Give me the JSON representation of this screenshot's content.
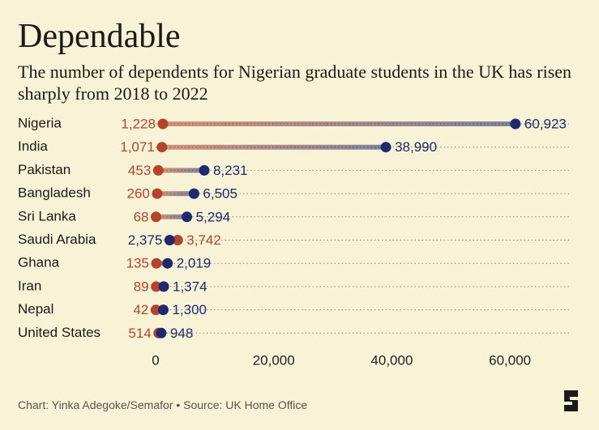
{
  "chart_data": {
    "type": "dumbbell",
    "title": "Dependable",
    "subtitle": "The number of dependents for Nigerian graduate students in the UK has risen sharply from 2018 to 2022",
    "footer": "Chart: Yinka Adegoke/Semafor • Source: UK Home Office",
    "categories": [
      "Nigeria",
      "India",
      "Pakistan",
      "Bangladesh",
      "Sri Lanka",
      "Saudi Arabia",
      "Ghana",
      "Iran",
      "Nepal",
      "United States"
    ],
    "series": [
      {
        "color": "#b3452a",
        "values": [
          1228,
          1071,
          453,
          260,
          68,
          3742,
          135,
          89,
          42,
          514
        ],
        "value_labels": [
          "1,228",
          "1,071",
          "453",
          "260",
          "68",
          "3,742",
          "135",
          "89",
          "42",
          "514"
        ]
      },
      {
        "color": "#1f2a6e",
        "values": [
          60923,
          38990,
          8231,
          6505,
          5294,
          2375,
          2019,
          1374,
          1300,
          948
        ],
        "value_labels": [
          "60,923",
          "38,990",
          "8,231",
          "6,505",
          "5,294",
          "2,375",
          "2,019",
          "1,374",
          "1,300",
          "948"
        ]
      }
    ],
    "xlim": [
      0,
      70000
    ],
    "xticks": [
      0,
      {
        "value": 20000,
        "label": "20,000"
      },
      {
        "value": 40000,
        "label": "40,000"
      },
      {
        "value": 60000,
        "label": "60,000"
      }
    ],
    "grid": true
  }
}
